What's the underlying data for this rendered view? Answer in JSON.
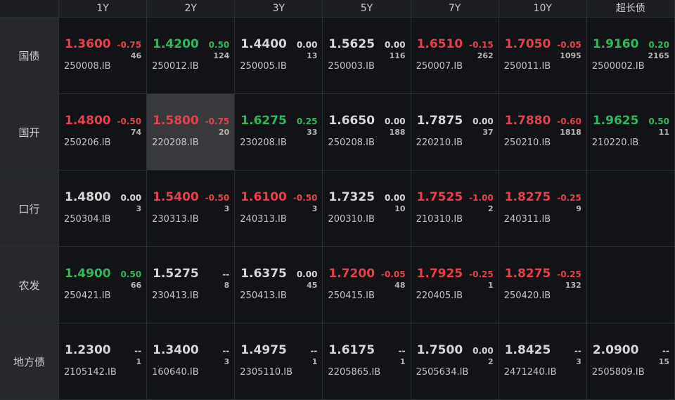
{
  "table": {
    "columns": [
      "1Y",
      "2Y",
      "3Y",
      "5Y",
      "7Y",
      "10Y",
      "超长债"
    ],
    "rows": [
      {
        "label": "国债",
        "cells": [
          {
            "price": "1.3600",
            "change": "-0.75",
            "volume": 46,
            "code": "250008.IB",
            "color": "#e8404a"
          },
          {
            "price": "1.4200",
            "change": "0.50",
            "volume": 124,
            "code": "250012.IB",
            "color": "#2fb85c"
          },
          {
            "price": "1.4400",
            "change": "0.00",
            "volume": 13,
            "code": "250005.IB",
            "color": "#d6d6d6"
          },
          {
            "price": "1.5625",
            "change": "0.00",
            "volume": 116,
            "code": "250003.IB",
            "color": "#d6d6d6"
          },
          {
            "price": "1.6510",
            "change": "-0.15",
            "volume": 262,
            "code": "250007.IB",
            "color": "#e8404a"
          },
          {
            "price": "1.7050",
            "change": "-0.05",
            "volume": 1095,
            "code": "250011.IB",
            "color": "#e8404a"
          },
          {
            "price": "1.9160",
            "change": "0.20",
            "volume": 2165,
            "code": "2500002.IB",
            "color": "#2fb85c"
          }
        ]
      },
      {
        "label": "国开",
        "cells": [
          {
            "price": "1.4800",
            "change": "-0.50",
            "volume": 74,
            "code": "250206.IB",
            "color": "#e8404a"
          },
          {
            "price": "1.5800",
            "change": "-0.75",
            "volume": 20,
            "code": "220208.IB",
            "color": "#e8404a",
            "selected": true
          },
          {
            "price": "1.6275",
            "change": "0.25",
            "volume": 33,
            "code": "230208.IB",
            "color": "#2fb85c"
          },
          {
            "price": "1.6650",
            "change": "0.00",
            "volume": 188,
            "code": "250208.IB",
            "color": "#d6d6d6"
          },
          {
            "price": "1.7875",
            "change": "0.00",
            "volume": 37,
            "code": "220210.IB",
            "color": "#d6d6d6"
          },
          {
            "price": "1.7880",
            "change": "-0.60",
            "volume": 1818,
            "code": "250210.IB",
            "color": "#e8404a"
          },
          {
            "price": "1.9625",
            "change": "0.50",
            "volume": 11,
            "code": "210220.IB",
            "color": "#2fb85c"
          }
        ]
      },
      {
        "label": "口行",
        "cells": [
          {
            "price": "1.4800",
            "change": "0.00",
            "volume": 3,
            "code": "250304.IB",
            "color": "#d6d6d6"
          },
          {
            "price": "1.5400",
            "change": "-0.50",
            "volume": 3,
            "code": "230313.IB",
            "color": "#e8404a"
          },
          {
            "price": "1.6100",
            "change": "-0.50",
            "volume": 3,
            "code": "240313.IB",
            "color": "#e8404a"
          },
          {
            "price": "1.7325",
            "change": "0.00",
            "volume": 10,
            "code": "200310.IB",
            "color": "#d6d6d6"
          },
          {
            "price": "1.7525",
            "change": "-1.00",
            "volume": 2,
            "code": "210310.IB",
            "color": "#e8404a"
          },
          {
            "price": "1.8275",
            "change": "-0.25",
            "volume": 9,
            "code": "240311.IB",
            "color": "#e8404a"
          },
          null
        ]
      },
      {
        "label": "农发",
        "cells": [
          {
            "price": "1.4900",
            "change": "0.50",
            "volume": 66,
            "code": "250421.IB",
            "color": "#2fb85c"
          },
          {
            "price": "1.5275",
            "change": "--",
            "volume": 8,
            "code": "230413.IB",
            "color": "#d6d6d6"
          },
          {
            "price": "1.6375",
            "change": "0.00",
            "volume": 45,
            "code": "250413.IB",
            "color": "#d6d6d6"
          },
          {
            "price": "1.7200",
            "change": "-0.05",
            "volume": 48,
            "code": "250415.IB",
            "color": "#e8404a"
          },
          {
            "price": "1.7925",
            "change": "-0.25",
            "volume": 1,
            "code": "220405.IB",
            "color": "#e8404a"
          },
          {
            "price": "1.8275",
            "change": "-0.25",
            "volume": 132,
            "code": "250420.IB",
            "color": "#e8404a"
          },
          null
        ]
      },
      {
        "label": "地方债",
        "cells": [
          {
            "price": "1.2300",
            "change": "--",
            "volume": 1,
            "code": "2105142.IB",
            "color": "#d6d6d6"
          },
          {
            "price": "1.3400",
            "change": "--",
            "volume": 3,
            "code": "160640.IB",
            "color": "#d6d6d6"
          },
          {
            "price": "1.4975",
            "change": "--",
            "volume": 1,
            "code": "2305110.IB",
            "color": "#d6d6d6"
          },
          {
            "price": "1.6175",
            "change": "--",
            "volume": 1,
            "code": "2205865.IB",
            "color": "#d6d6d6"
          },
          {
            "price": "1.7500",
            "change": "0.00",
            "volume": 2,
            "code": "2505634.IB",
            "color": "#d6d6d6"
          },
          {
            "price": "1.8425",
            "change": "--",
            "volume": 3,
            "code": "2471240.IB",
            "color": "#d6d6d6"
          },
          {
            "price": "2.0900",
            "change": "--",
            "volume": 15,
            "code": "2505809.IB",
            "color": "#d6d6d6"
          }
        ]
      }
    ]
  }
}
